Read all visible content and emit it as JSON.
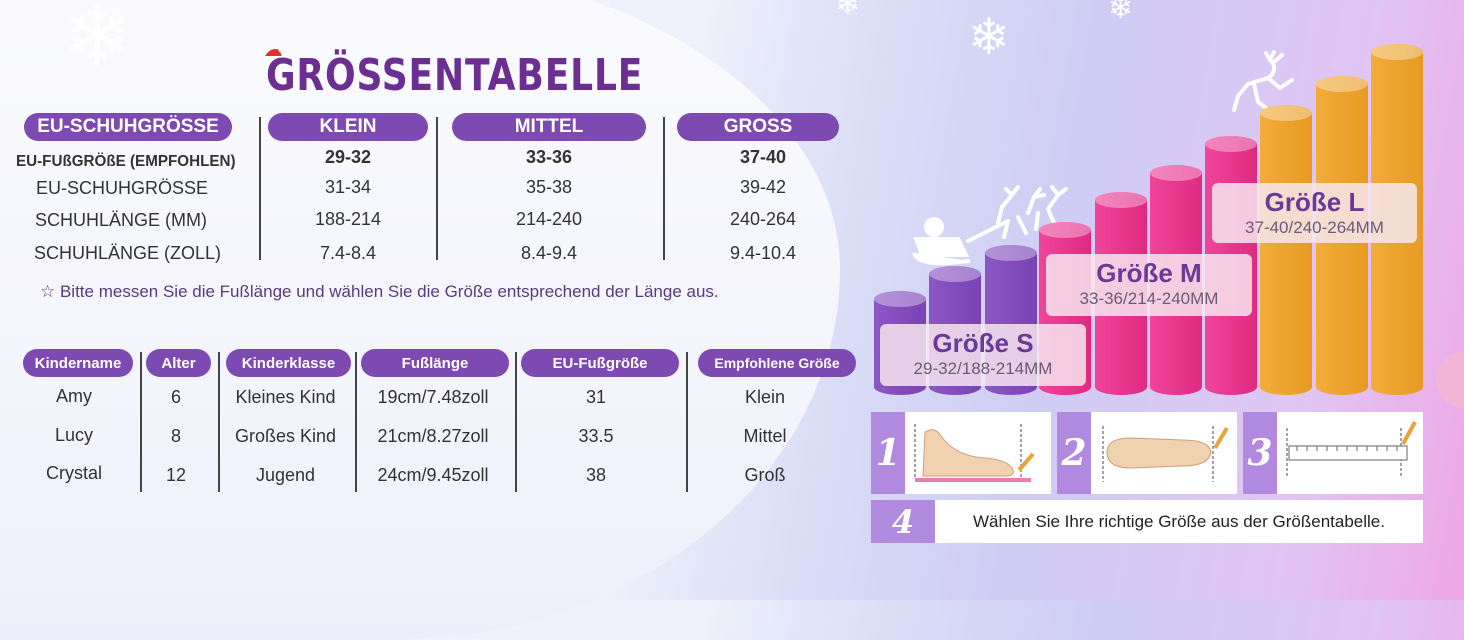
{
  "title": "GRÖSSENTABELLE",
  "size_table": {
    "label_header": "EU-SCHUHGRÖSSE",
    "columns": [
      "KLEIN",
      "MITTEL",
      "GROSS"
    ],
    "rows": [
      {
        "label": "EU-FUßGRÖßE (EMPFOHLEN)",
        "values": [
          "29-32",
          "33-36",
          "37-40"
        ]
      },
      {
        "label": "EU-SCHUHGRÖSSE",
        "values": [
          "31-34",
          "35-38",
          "39-42"
        ]
      },
      {
        "label": "SCHUHLÄNGE (MM)",
        "values": [
          "188-214",
          "214-240",
          "240-264"
        ]
      },
      {
        "label": "SCHUHLÄNGE (ZOLL)",
        "values": [
          "7.4-8.4",
          "8.4-9.4",
          "9.4-10.4"
        ]
      }
    ]
  },
  "note": "☆ Bitte messen Sie die Fußlänge und wählen Sie die Größe entsprechend der Länge aus.",
  "kids_table": {
    "headers": [
      "Kindername",
      "Alter",
      "Kinderklasse",
      "Fußlänge",
      "EU-Fußgröße",
      "Empfohlene Größe"
    ],
    "rows": [
      [
        "Amy",
        "6",
        "Kleines Kind",
        "19cm/7.48zoll",
        "31",
        "Klein"
      ],
      [
        "Lucy",
        "8",
        "Großes Kind",
        "21cm/8.27zoll",
        "33.5",
        "Mittel"
      ],
      [
        "Crystal",
        "12",
        "Jugend",
        "24cm/9.45zoll",
        "38",
        "Groß"
      ]
    ]
  },
  "size_labels": [
    {
      "title": "Größe S",
      "sub": "29-32/188-214MM"
    },
    {
      "title": "Größe M",
      "sub": "33-36/214-240MM"
    },
    {
      "title": "Größe L",
      "sub": "37-40/240-264MM"
    }
  ],
  "steps": [
    "1",
    "2",
    "3",
    "4"
  ],
  "step4_text": "Wählen Sie Ihre richtige Größe aus der Größentabelle.",
  "colors": {
    "purple": "#7c4ab0",
    "pink": "#ec2e86",
    "orange": "#eea22e"
  }
}
